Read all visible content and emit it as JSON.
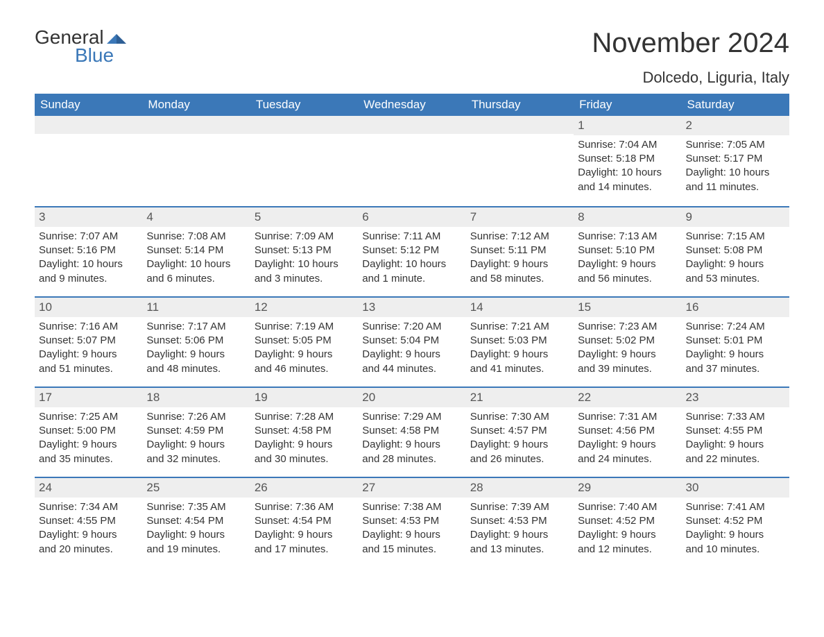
{
  "logo": {
    "word1": "General",
    "word2": "Blue",
    "mark_color": "#3b78b8"
  },
  "title": "November 2024",
  "location": "Dolcedo, Liguria, Italy",
  "colors": {
    "header_bg": "#3b78b8",
    "header_text": "#ffffff",
    "row_border": "#3b78b8",
    "daynum_bg": "#eeeeee",
    "body_text": "#333333",
    "background": "#ffffff"
  },
  "fonts": {
    "title_size_pt": 30,
    "location_size_pt": 17,
    "dow_size_pt": 13,
    "cell_size_pt": 11
  },
  "days_of_week": [
    "Sunday",
    "Monday",
    "Tuesday",
    "Wednesday",
    "Thursday",
    "Friday",
    "Saturday"
  ],
  "weeks": [
    [
      null,
      null,
      null,
      null,
      null,
      {
        "n": "1",
        "sunrise": "Sunrise: 7:04 AM",
        "sunset": "Sunset: 5:18 PM",
        "day1": "Daylight: 10 hours",
        "day2": "and 14 minutes."
      },
      {
        "n": "2",
        "sunrise": "Sunrise: 7:05 AM",
        "sunset": "Sunset: 5:17 PM",
        "day1": "Daylight: 10 hours",
        "day2": "and 11 minutes."
      }
    ],
    [
      {
        "n": "3",
        "sunrise": "Sunrise: 7:07 AM",
        "sunset": "Sunset: 5:16 PM",
        "day1": "Daylight: 10 hours",
        "day2": "and 9 minutes."
      },
      {
        "n": "4",
        "sunrise": "Sunrise: 7:08 AM",
        "sunset": "Sunset: 5:14 PM",
        "day1": "Daylight: 10 hours",
        "day2": "and 6 minutes."
      },
      {
        "n": "5",
        "sunrise": "Sunrise: 7:09 AM",
        "sunset": "Sunset: 5:13 PM",
        "day1": "Daylight: 10 hours",
        "day2": "and 3 minutes."
      },
      {
        "n": "6",
        "sunrise": "Sunrise: 7:11 AM",
        "sunset": "Sunset: 5:12 PM",
        "day1": "Daylight: 10 hours",
        "day2": "and 1 minute."
      },
      {
        "n": "7",
        "sunrise": "Sunrise: 7:12 AM",
        "sunset": "Sunset: 5:11 PM",
        "day1": "Daylight: 9 hours",
        "day2": "and 58 minutes."
      },
      {
        "n": "8",
        "sunrise": "Sunrise: 7:13 AM",
        "sunset": "Sunset: 5:10 PM",
        "day1": "Daylight: 9 hours",
        "day2": "and 56 minutes."
      },
      {
        "n": "9",
        "sunrise": "Sunrise: 7:15 AM",
        "sunset": "Sunset: 5:08 PM",
        "day1": "Daylight: 9 hours",
        "day2": "and 53 minutes."
      }
    ],
    [
      {
        "n": "10",
        "sunrise": "Sunrise: 7:16 AM",
        "sunset": "Sunset: 5:07 PM",
        "day1": "Daylight: 9 hours",
        "day2": "and 51 minutes."
      },
      {
        "n": "11",
        "sunrise": "Sunrise: 7:17 AM",
        "sunset": "Sunset: 5:06 PM",
        "day1": "Daylight: 9 hours",
        "day2": "and 48 minutes."
      },
      {
        "n": "12",
        "sunrise": "Sunrise: 7:19 AM",
        "sunset": "Sunset: 5:05 PM",
        "day1": "Daylight: 9 hours",
        "day2": "and 46 minutes."
      },
      {
        "n": "13",
        "sunrise": "Sunrise: 7:20 AM",
        "sunset": "Sunset: 5:04 PM",
        "day1": "Daylight: 9 hours",
        "day2": "and 44 minutes."
      },
      {
        "n": "14",
        "sunrise": "Sunrise: 7:21 AM",
        "sunset": "Sunset: 5:03 PM",
        "day1": "Daylight: 9 hours",
        "day2": "and 41 minutes."
      },
      {
        "n": "15",
        "sunrise": "Sunrise: 7:23 AM",
        "sunset": "Sunset: 5:02 PM",
        "day1": "Daylight: 9 hours",
        "day2": "and 39 minutes."
      },
      {
        "n": "16",
        "sunrise": "Sunrise: 7:24 AM",
        "sunset": "Sunset: 5:01 PM",
        "day1": "Daylight: 9 hours",
        "day2": "and 37 minutes."
      }
    ],
    [
      {
        "n": "17",
        "sunrise": "Sunrise: 7:25 AM",
        "sunset": "Sunset: 5:00 PM",
        "day1": "Daylight: 9 hours",
        "day2": "and 35 minutes."
      },
      {
        "n": "18",
        "sunrise": "Sunrise: 7:26 AM",
        "sunset": "Sunset: 4:59 PM",
        "day1": "Daylight: 9 hours",
        "day2": "and 32 minutes."
      },
      {
        "n": "19",
        "sunrise": "Sunrise: 7:28 AM",
        "sunset": "Sunset: 4:58 PM",
        "day1": "Daylight: 9 hours",
        "day2": "and 30 minutes."
      },
      {
        "n": "20",
        "sunrise": "Sunrise: 7:29 AM",
        "sunset": "Sunset: 4:58 PM",
        "day1": "Daylight: 9 hours",
        "day2": "and 28 minutes."
      },
      {
        "n": "21",
        "sunrise": "Sunrise: 7:30 AM",
        "sunset": "Sunset: 4:57 PM",
        "day1": "Daylight: 9 hours",
        "day2": "and 26 minutes."
      },
      {
        "n": "22",
        "sunrise": "Sunrise: 7:31 AM",
        "sunset": "Sunset: 4:56 PM",
        "day1": "Daylight: 9 hours",
        "day2": "and 24 minutes."
      },
      {
        "n": "23",
        "sunrise": "Sunrise: 7:33 AM",
        "sunset": "Sunset: 4:55 PM",
        "day1": "Daylight: 9 hours",
        "day2": "and 22 minutes."
      }
    ],
    [
      {
        "n": "24",
        "sunrise": "Sunrise: 7:34 AM",
        "sunset": "Sunset: 4:55 PM",
        "day1": "Daylight: 9 hours",
        "day2": "and 20 minutes."
      },
      {
        "n": "25",
        "sunrise": "Sunrise: 7:35 AM",
        "sunset": "Sunset: 4:54 PM",
        "day1": "Daylight: 9 hours",
        "day2": "and 19 minutes."
      },
      {
        "n": "26",
        "sunrise": "Sunrise: 7:36 AM",
        "sunset": "Sunset: 4:54 PM",
        "day1": "Daylight: 9 hours",
        "day2": "and 17 minutes."
      },
      {
        "n": "27",
        "sunrise": "Sunrise: 7:38 AM",
        "sunset": "Sunset: 4:53 PM",
        "day1": "Daylight: 9 hours",
        "day2": "and 15 minutes."
      },
      {
        "n": "28",
        "sunrise": "Sunrise: 7:39 AM",
        "sunset": "Sunset: 4:53 PM",
        "day1": "Daylight: 9 hours",
        "day2": "and 13 minutes."
      },
      {
        "n": "29",
        "sunrise": "Sunrise: 7:40 AM",
        "sunset": "Sunset: 4:52 PM",
        "day1": "Daylight: 9 hours",
        "day2": "and 12 minutes."
      },
      {
        "n": "30",
        "sunrise": "Sunrise: 7:41 AM",
        "sunset": "Sunset: 4:52 PM",
        "day1": "Daylight: 9 hours",
        "day2": "and 10 minutes."
      }
    ]
  ]
}
